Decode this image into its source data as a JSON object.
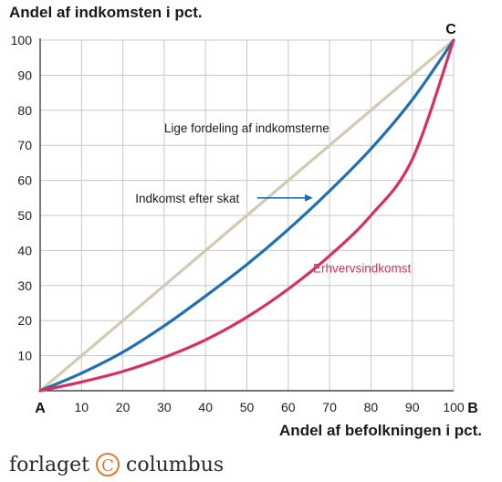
{
  "brand": {
    "before": "forlaget",
    "mark": "C",
    "after": "columbus"
  },
  "chart_data": {
    "type": "line",
    "title": "Andel af indkomsten i pct.",
    "xlabel": "Andel af befolkningen i pct.",
    "ylabel": "",
    "xlim": [
      0,
      100
    ],
    "ylim": [
      0,
      100
    ],
    "grid": true,
    "x_ticks": [
      "10",
      "20",
      "30",
      "40",
      "50",
      "60",
      "70",
      "80",
      "90",
      "100"
    ],
    "y_ticks": [
      "10",
      "20",
      "30",
      "40",
      "50",
      "60",
      "70",
      "80",
      "90",
      "100"
    ],
    "point_labels": {
      "origin": "A",
      "bottom_right": "B",
      "top_right": "C"
    },
    "series": [
      {
        "name": "Lige fordeling af indkomsterne",
        "color": "#d3cab2",
        "x": [
          0,
          10,
          20,
          30,
          40,
          50,
          60,
          70,
          80,
          90,
          100
        ],
        "y": [
          0,
          10,
          20,
          30,
          40,
          50,
          60,
          70,
          80,
          90,
          100
        ]
      },
      {
        "name": "Indkomst efter skat",
        "color": "#1f6fb2",
        "x": [
          0,
          10,
          20,
          30,
          40,
          50,
          60,
          70,
          80,
          90,
          100
        ],
        "y": [
          0,
          5,
          11,
          18.5,
          27,
          36,
          46,
          57,
          69,
          83,
          100
        ]
      },
      {
        "name": "Erhvervsindkomst",
        "color": "#d92f5e",
        "x": [
          0,
          10,
          20,
          30,
          40,
          50,
          60,
          70,
          80,
          90,
          100
        ],
        "y": [
          0,
          2.5,
          5.5,
          9.5,
          14.5,
          21,
          29,
          38.5,
          50,
          66,
          100
        ]
      }
    ],
    "annotations": [
      {
        "text": "Lige fordeling af indkomsterne",
        "series": 0
      },
      {
        "text": "Indkomst efter skat",
        "series": 1,
        "arrow": true
      },
      {
        "text": "Erhvervsindkomst",
        "series": 2
      }
    ]
  }
}
